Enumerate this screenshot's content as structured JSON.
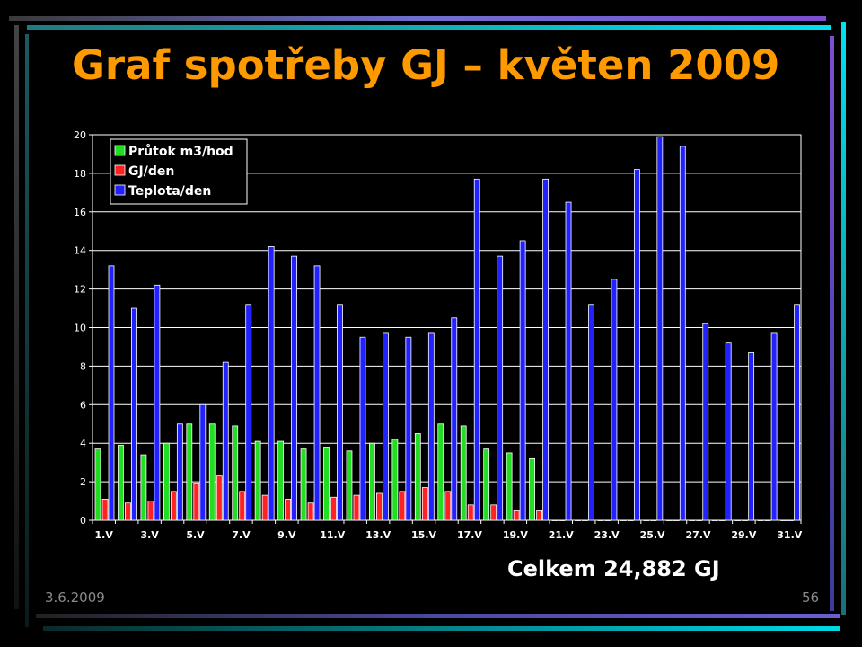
{
  "slide": {
    "title": "Graf spotřeby GJ – květen 2009",
    "total": "Celkem 24,882 GJ",
    "date": "3.6.2009",
    "page": "56"
  },
  "colors": {
    "title": "#ff9900",
    "flow": "#22dd22",
    "energy": "#ff2222",
    "temperature": "#2222ff",
    "plot_background": "#000000",
    "grid": "#ffffff"
  },
  "chart_data": {
    "type": "bar",
    "x": [
      "1.V",
      "2.V",
      "3.V",
      "4.V",
      "5.V",
      "6.V",
      "7.V",
      "8.V",
      "9.V",
      "10.V",
      "11.V",
      "12.V",
      "13.V",
      "14.V",
      "15.V",
      "16.V",
      "17.V",
      "18.V",
      "19.V",
      "20.V",
      "21.V",
      "22.V",
      "23.V",
      "24.V",
      "25.V",
      "26.V",
      "27.V",
      "28.V",
      "29.V",
      "30.V",
      "31.V"
    ],
    "tick_labels": [
      "1.V",
      "3.V",
      "5.V",
      "7.V",
      "9.V",
      "11.V",
      "13.V",
      "15.V",
      "17.V",
      "19.V",
      "21.V",
      "23.V",
      "25.V",
      "27.V",
      "29.V",
      "31.V"
    ],
    "series": [
      {
        "name": "Průtok m3/hod",
        "color": "#22dd22",
        "values": [
          3.7,
          3.9,
          3.4,
          4.0,
          5.0,
          5.0,
          4.9,
          4.1,
          4.1,
          3.7,
          3.8,
          3.6,
          4.0,
          4.2,
          4.5,
          5.0,
          4.9,
          3.7,
          3.5,
          3.2,
          0,
          0,
          0,
          0,
          0,
          0,
          0,
          0,
          0,
          0,
          0
        ]
      },
      {
        "name": "GJ/den",
        "color": "#ff2222",
        "values": [
          1.1,
          0.9,
          1.0,
          1.5,
          1.9,
          2.3,
          1.5,
          1.3,
          1.1,
          0.9,
          1.2,
          1.3,
          1.4,
          1.5,
          1.7,
          1.5,
          0.8,
          0.8,
          0.5,
          0.5,
          0,
          0,
          0,
          0,
          0,
          0,
          0,
          0,
          0,
          0,
          0
        ]
      },
      {
        "name": "Teplota/den",
        "color": "#2222ff",
        "values": [
          13.2,
          11.0,
          12.2,
          5.0,
          6.0,
          8.2,
          11.2,
          14.2,
          13.7,
          13.2,
          11.2,
          9.5,
          9.7,
          9.5,
          9.7,
          10.5,
          17.7,
          13.7,
          14.5,
          17.7,
          16.5,
          11.2,
          12.5,
          18.2,
          19.9,
          19.4,
          10.2,
          9.2,
          8.7,
          9.7,
          11.2
        ]
      }
    ],
    "ylim": [
      0,
      20
    ],
    "yticks": [
      0,
      2,
      4,
      6,
      8,
      10,
      12,
      14,
      16,
      18,
      20
    ],
    "grid": true,
    "legend_position": "top-left"
  }
}
